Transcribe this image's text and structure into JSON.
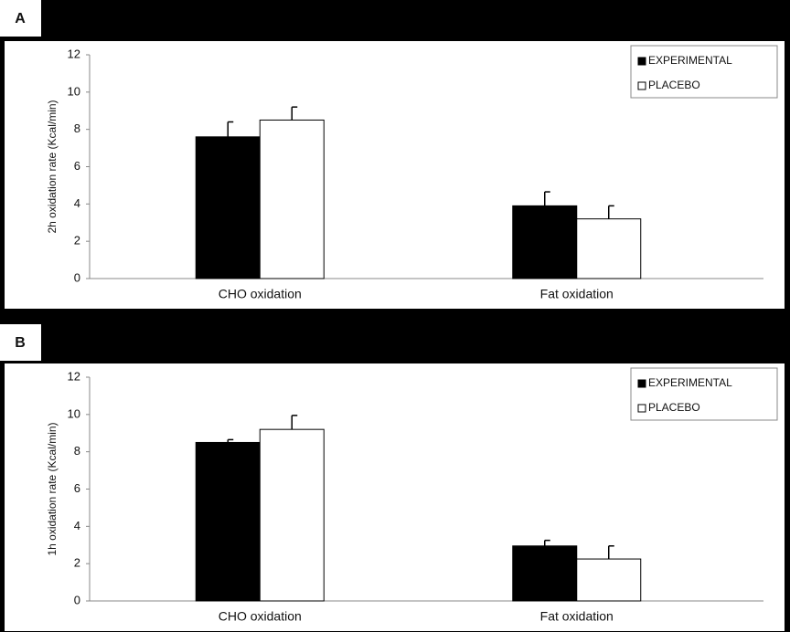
{
  "chart_data": [
    {
      "type": "bar",
      "label": "A",
      "ylabel": "2h oxidation rate (Kcal/min)",
      "categories": [
        "CHO oxidation",
        "Fat oxidation"
      ],
      "series": [
        {
          "name": "EXPERIMENTAL",
          "color": "#000000",
          "values": [
            7.6,
            3.9
          ],
          "errors": [
            0.8,
            0.75
          ]
        },
        {
          "name": "PLACEBO",
          "color": "#ffffff",
          "values": [
            8.5,
            3.2
          ],
          "errors": [
            0.7,
            0.7
          ]
        }
      ],
      "ylim": [
        0,
        12
      ],
      "yticks": [
        0,
        2,
        4,
        6,
        8,
        10,
        12
      ],
      "legend": "upper right"
    },
    {
      "type": "bar",
      "label": "B",
      "ylabel": "1h oxidation rate (Kcal/min)",
      "categories": [
        "CHO oxidation",
        "Fat oxidation"
      ],
      "series": [
        {
          "name": "EXPERIMENTAL",
          "color": "#000000",
          "values": [
            8.5,
            2.95
          ],
          "errors": [
            0.15,
            0.3
          ]
        },
        {
          "name": "PLACEBO",
          "color": "#ffffff",
          "values": [
            9.2,
            2.25
          ],
          "errors": [
            0.75,
            0.7
          ]
        }
      ],
      "ylim": [
        0,
        12
      ],
      "yticks": [
        0,
        2,
        4,
        6,
        8,
        10,
        12
      ],
      "legend": "upper right"
    }
  ]
}
